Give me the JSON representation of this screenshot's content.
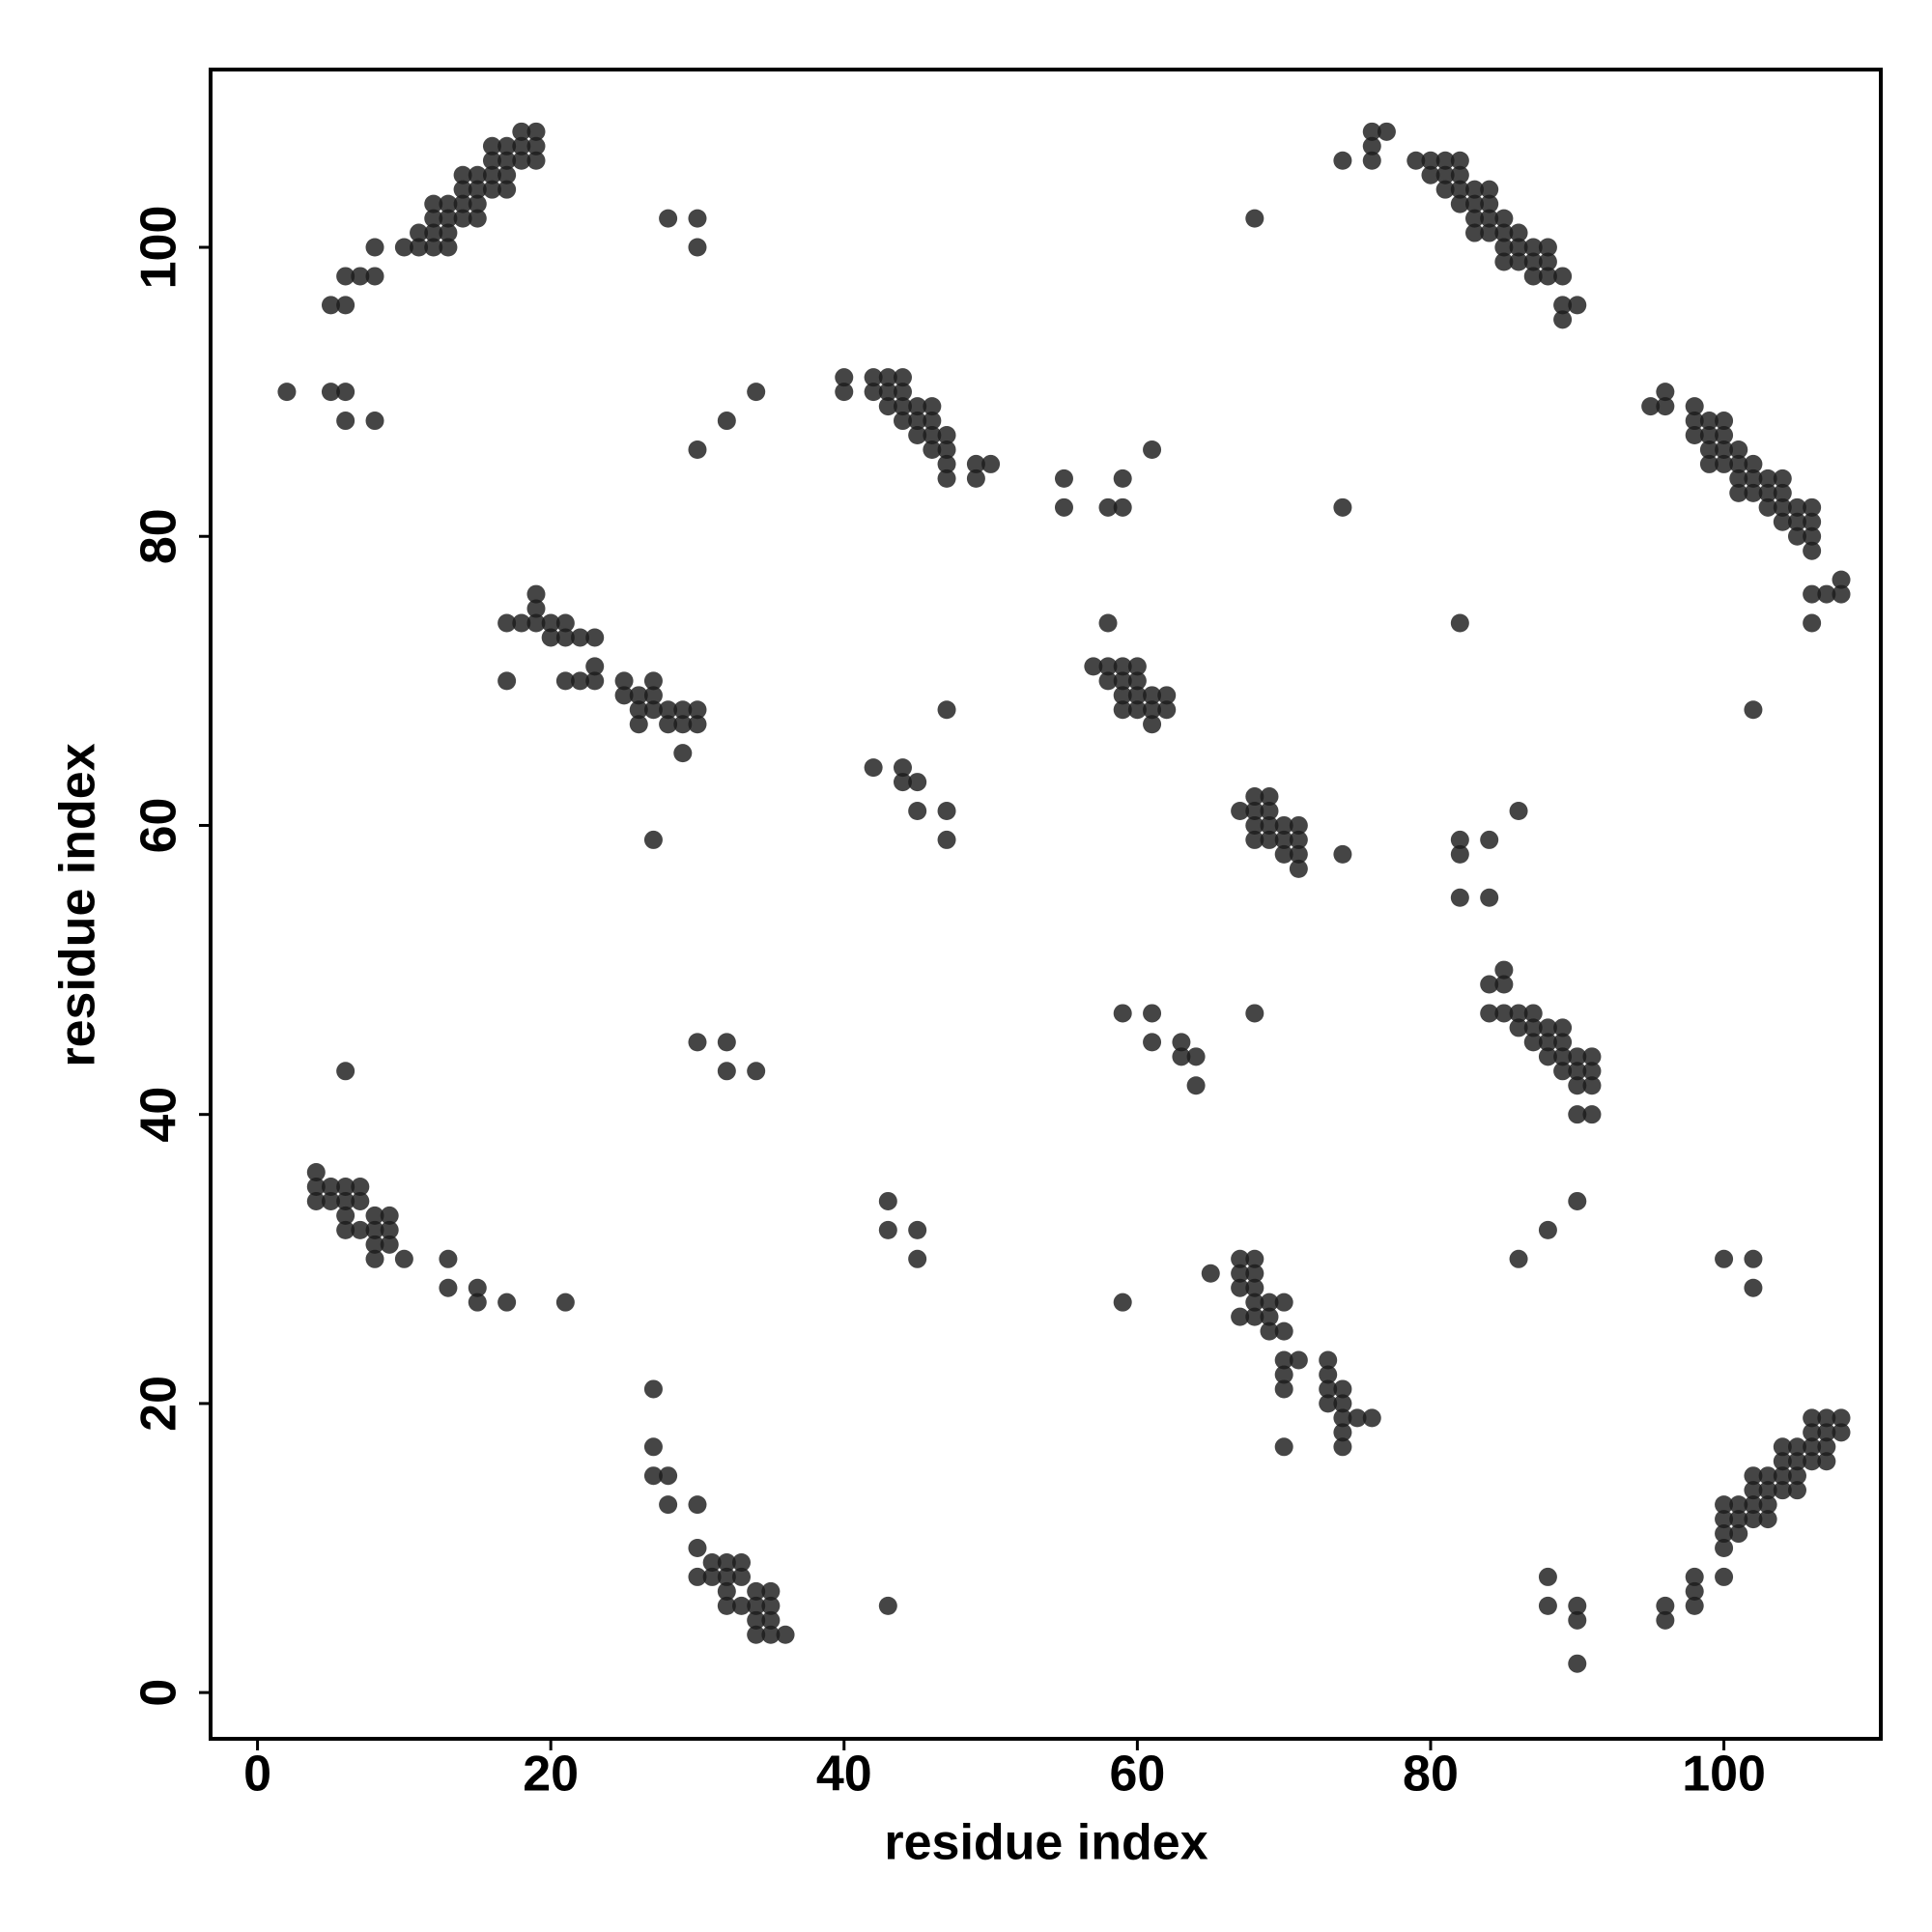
{
  "chart_data": {
    "type": "scatter",
    "xlabel": "residue index",
    "ylabel": "residue index",
    "color": "#1c1c1c",
    "xlim": [
      -3.2,
      110.7
    ],
    "ylim": [
      -3.2,
      112.3
    ],
    "xticks": [
      0,
      20,
      40,
      60,
      80,
      100
    ],
    "yticks": [
      0,
      20,
      40,
      60,
      80,
      100
    ],
    "series": [
      {
        "x": [
          5,
          6,
          6,
          7,
          8,
          8,
          10,
          11,
          11,
          12,
          12,
          12,
          12,
          13,
          13,
          13,
          13,
          14,
          14,
          14,
          14,
          15,
          15,
          15,
          15,
          16,
          16,
          16,
          16,
          17,
          17,
          17,
          17,
          18,
          18,
          18,
          19,
          19,
          19,
          2,
          5,
          6,
          6,
          8,
          28,
          30,
          30,
          30,
          32,
          34,
          40,
          40,
          42,
          42,
          43,
          43,
          43,
          44,
          44,
          44,
          44,
          45,
          45,
          45,
          46,
          46,
          46,
          46,
          47,
          47,
          47,
          47,
          49,
          49,
          50,
          55,
          55,
          58,
          59,
          59,
          61,
          68,
          74,
          74,
          76,
          76,
          76,
          77,
          79,
          80,
          80,
          81,
          81,
          81,
          82,
          82,
          82,
          82,
          83,
          83,
          83,
          83,
          84,
          84,
          84,
          84,
          85,
          85,
          85,
          85,
          86,
          86,
          86,
          87,
          87,
          87,
          88,
          88,
          88,
          89,
          89,
          89,
          90,
          17,
          17,
          18,
          19,
          19,
          19,
          20,
          20,
          21,
          21,
          21,
          22,
          22,
          23,
          23,
          23,
          25,
          25,
          26,
          26,
          26,
          27,
          27,
          27,
          28,
          28,
          29,
          29,
          29,
          30,
          30,
          6,
          27,
          30,
          32,
          32,
          34,
          42,
          44,
          44,
          45,
          45,
          47,
          47,
          47,
          57,
          58,
          58,
          58,
          59,
          59,
          59,
          59,
          60,
          60,
          60,
          60,
          61,
          61,
          61,
          62,
          62,
          4,
          4,
          4,
          5,
          5,
          6,
          6,
          6,
          6,
          7,
          7,
          7,
          8,
          8,
          8,
          8,
          9,
          9,
          9,
          10,
          13,
          13,
          15,
          15,
          17,
          21,
          96,
          96,
          98,
          98,
          98,
          100,
          100,
          100,
          101,
          100,
          101,
          102,
          103,
          100,
          101,
          102,
          103,
          102,
          103,
          104,
          105,
          102,
          103,
          104,
          105,
          104,
          105,
          106,
          107,
          104,
          105,
          106,
          107,
          106,
          107,
          108,
          106,
          107,
          108,
          90,
          90,
          90,
          88,
          88,
          102,
          102,
          100,
          86,
          88,
          90,
          90,
          91,
          90,
          91,
          89,
          90,
          91,
          88,
          89,
          90,
          91,
          87,
          88,
          89,
          86,
          87,
          88,
          89,
          84,
          85,
          86,
          87,
          84,
          85,
          85,
          82,
          84,
          82,
          82,
          84,
          86,
          102,
          82,
          106,
          106,
          107,
          108,
          108,
          106,
          105,
          106,
          104,
          105,
          106,
          103,
          104,
          105,
          106,
          101,
          102,
          103,
          104,
          101,
          102,
          103,
          104,
          99,
          100,
          101,
          102,
          99,
          100,
          101,
          98,
          99,
          100,
          98,
          99,
          100,
          95,
          96,
          98,
          96,
          70,
          74,
          74,
          74,
          75,
          76,
          73,
          74,
          70,
          73,
          74,
          70,
          73,
          70,
          71,
          73,
          69,
          70,
          67,
          68,
          69,
          68,
          69,
          70,
          67,
          68,
          65,
          67,
          68,
          67,
          68,
          43,
          59,
          45,
          43,
          45,
          43,
          64,
          63,
          64,
          61,
          63,
          59,
          61,
          68,
          71,
          70,
          71,
          74,
          68,
          69,
          70,
          71,
          68,
          69,
          70,
          71,
          67,
          68,
          69,
          68,
          69,
          36,
          35,
          34,
          34,
          35,
          32,
          33,
          34,
          35,
          32,
          34,
          35,
          30,
          31,
          32,
          33,
          31,
          32,
          33,
          30,
          28,
          30,
          27,
          28,
          27,
          27
        ],
        "values": [
          96,
          96,
          98,
          98,
          98,
          100,
          100,
          100,
          101,
          100,
          101,
          102,
          103,
          100,
          101,
          102,
          103,
          102,
          103,
          104,
          105,
          102,
          103,
          104,
          105,
          104,
          105,
          106,
          107,
          104,
          105,
          106,
          107,
          106,
          107,
          108,
          106,
          107,
          108,
          90,
          90,
          90,
          88,
          88,
          102,
          102,
          100,
          86,
          88,
          90,
          90,
          91,
          90,
          91,
          89,
          90,
          91,
          88,
          89,
          90,
          91,
          87,
          88,
          89,
          86,
          87,
          88,
          89,
          84,
          85,
          86,
          87,
          84,
          85,
          85,
          82,
          84,
          82,
          82,
          84,
          86,
          102,
          82,
          106,
          106,
          107,
          108,
          108,
          106,
          105,
          106,
          104,
          105,
          106,
          103,
          104,
          105,
          106,
          101,
          102,
          103,
          104,
          101,
          102,
          103,
          104,
          99,
          100,
          101,
          102,
          99,
          100,
          101,
          98,
          99,
          100,
          98,
          99,
          100,
          95,
          96,
          98,
          96,
          70,
          74,
          74,
          74,
          75,
          76,
          73,
          74,
          70,
          73,
          74,
          70,
          73,
          70,
          71,
          73,
          69,
          70,
          67,
          68,
          69,
          68,
          69,
          70,
          67,
          68,
          65,
          67,
          68,
          67,
          68,
          43,
          59,
          45,
          43,
          45,
          43,
          64,
          63,
          64,
          61,
          63,
          59,
          61,
          68,
          71,
          70,
          71,
          74,
          68,
          69,
          70,
          71,
          68,
          69,
          70,
          71,
          67,
          68,
          69,
          68,
          69,
          36,
          35,
          34,
          34,
          35,
          32,
          33,
          34,
          35,
          32,
          34,
          35,
          30,
          31,
          32,
          33,
          31,
          32,
          33,
          30,
          28,
          30,
          27,
          28,
          27,
          27,
          5,
          6,
          6,
          7,
          8,
          8,
          10,
          11,
          11,
          12,
          12,
          12,
          12,
          13,
          13,
          13,
          13,
          14,
          14,
          14,
          14,
          15,
          15,
          15,
          15,
          16,
          16,
          16,
          16,
          17,
          17,
          17,
          17,
          18,
          18,
          18,
          19,
          19,
          19,
          2,
          5,
          6,
          6,
          8,
          28,
          30,
          30,
          30,
          32,
          34,
          40,
          40,
          42,
          42,
          43,
          43,
          43,
          44,
          44,
          44,
          44,
          45,
          45,
          45,
          46,
          46,
          46,
          46,
          47,
          47,
          47,
          47,
          49,
          49,
          50,
          55,
          55,
          58,
          59,
          59,
          61,
          68,
          74,
          74,
          76,
          76,
          76,
          77,
          79,
          80,
          80,
          81,
          81,
          81,
          82,
          82,
          82,
          82,
          83,
          83,
          83,
          83,
          84,
          84,
          84,
          84,
          85,
          85,
          85,
          85,
          86,
          86,
          86,
          87,
          87,
          87,
          88,
          88,
          88,
          89,
          89,
          89,
          90,
          17,
          17,
          18,
          19,
          19,
          19,
          20,
          20,
          21,
          21,
          21,
          22,
          22,
          23,
          23,
          23,
          25,
          25,
          26,
          26,
          26,
          27,
          27,
          27,
          28,
          28,
          29,
          29,
          29,
          30,
          30,
          6,
          27,
          30,
          32,
          32,
          34,
          42,
          44,
          44,
          45,
          45,
          47,
          47,
          47,
          57,
          58,
          58,
          58,
          59,
          59,
          59,
          59,
          60,
          60,
          60,
          60,
          61,
          61,
          61,
          62,
          62,
          4,
          4,
          4,
          5,
          5,
          6,
          6,
          6,
          6,
          7,
          7,
          7,
          8,
          8,
          8,
          8,
          9,
          9,
          9,
          10,
          13,
          13,
          15,
          15,
          17,
          21
        ]
      }
    ]
  }
}
